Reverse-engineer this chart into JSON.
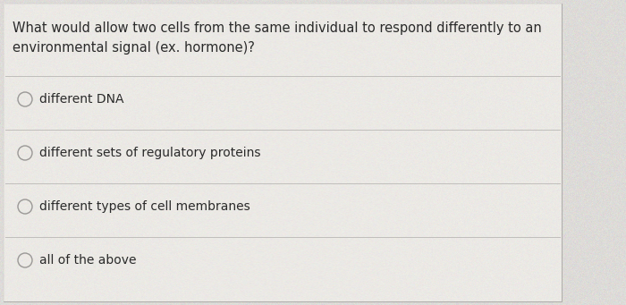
{
  "question_line1": "What would allow two cells from the same individual to respond differently to an",
  "question_line2": "environmental signal (ex. hormone)?",
  "options": [
    "different DNA",
    "different sets of regulatory proteins",
    "different types of cell membranes",
    "all of the above"
  ],
  "bg_color": "#dddbd8",
  "card_color": "#eceae6",
  "line_color": "#c0bebb",
  "text_color": "#2a2a2a",
  "circle_edge_color": "#9a9896",
  "question_fontsize": 10.5,
  "option_fontsize": 10.0
}
